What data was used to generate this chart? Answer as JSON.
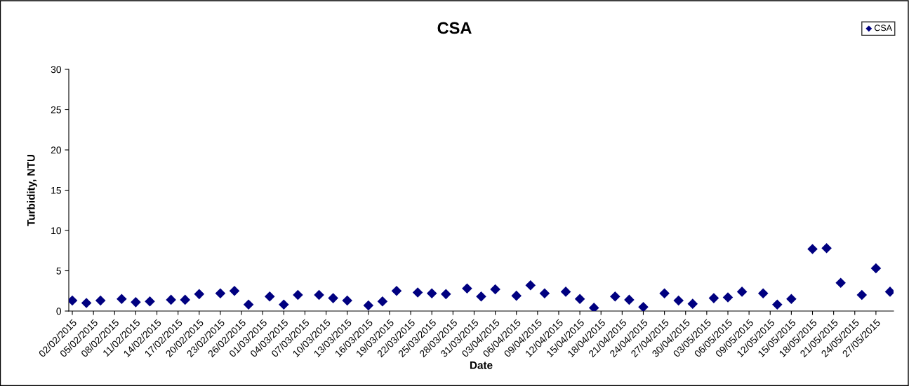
{
  "chart_data": {
    "type": "scatter",
    "title": "CSA",
    "xlabel": "Date",
    "ylabel": "Turbidity, NTU",
    "x": [
      "2015-02-02",
      "2015-02-04",
      "2015-02-06",
      "2015-02-09",
      "2015-02-11",
      "2015-02-13",
      "2015-02-16",
      "2015-02-18",
      "2015-02-20",
      "2015-02-23",
      "2015-02-25",
      "2015-02-27",
      "2015-03-02",
      "2015-03-04",
      "2015-03-06",
      "2015-03-09",
      "2015-03-11",
      "2015-03-13",
      "2015-03-16",
      "2015-03-18",
      "2015-03-20",
      "2015-03-23",
      "2015-03-25",
      "2015-03-27",
      "2015-03-30",
      "2015-04-01",
      "2015-04-03",
      "2015-04-06",
      "2015-04-08",
      "2015-04-10",
      "2015-04-13",
      "2015-04-15",
      "2015-04-17",
      "2015-04-20",
      "2015-04-22",
      "2015-04-24",
      "2015-04-27",
      "2015-04-29",
      "2015-05-01",
      "2015-05-04",
      "2015-05-06",
      "2015-05-08",
      "2015-05-11",
      "2015-05-13",
      "2015-05-15",
      "2015-05-18",
      "2015-05-20",
      "2015-05-22",
      "2015-05-25",
      "2015-05-27",
      "2015-05-29"
    ],
    "series": [
      {
        "name": "CSA",
        "color": "#000080",
        "values": [
          1.3,
          1.0,
          1.3,
          1.5,
          1.1,
          1.2,
          1.4,
          1.4,
          2.1,
          2.2,
          2.5,
          0.8,
          1.8,
          0.8,
          2.0,
          2.0,
          1.6,
          1.3,
          0.7,
          1.2,
          2.5,
          2.3,
          2.2,
          2.1,
          2.8,
          1.8,
          2.7,
          1.9,
          3.2,
          2.2,
          2.4,
          1.5,
          0.4,
          1.8,
          1.4,
          0.5,
          2.2,
          1.3,
          0.9,
          1.6,
          1.7,
          2.4,
          2.2,
          0.8,
          1.5,
          7.7,
          7.8,
          3.5,
          2.0,
          5.3,
          2.4
        ]
      }
    ],
    "marker": "diamond",
    "legend": "top right",
    "grid": false,
    "xlim": [
      "2015-02-01T12:00",
      "2015-05-29T12:00"
    ],
    "xticks": [
      {
        "value": "2015-02-02",
        "label": "02/02/2015"
      },
      {
        "value": "2015-02-05",
        "label": "05/02/2015"
      },
      {
        "value": "2015-02-08",
        "label": "08/02/2015"
      },
      {
        "value": "2015-02-11",
        "label": "11/02/2015"
      },
      {
        "value": "2015-02-14",
        "label": "14/02/2015"
      },
      {
        "value": "2015-02-17",
        "label": "17/02/2015"
      },
      {
        "value": "2015-02-20",
        "label": "20/02/2015"
      },
      {
        "value": "2015-02-23",
        "label": "23/02/2015"
      },
      {
        "value": "2015-02-26",
        "label": "26/02/2015"
      },
      {
        "value": "2015-03-01",
        "label": "01/03/2015"
      },
      {
        "value": "2015-03-04",
        "label": "04/03/2015"
      },
      {
        "value": "2015-03-07",
        "label": "07/03/2015"
      },
      {
        "value": "2015-03-10",
        "label": "10/03/2015"
      },
      {
        "value": "2015-03-13",
        "label": "13/03/2015"
      },
      {
        "value": "2015-03-16",
        "label": "16/03/2015"
      },
      {
        "value": "2015-03-19",
        "label": "19/03/2015"
      },
      {
        "value": "2015-03-22",
        "label": "22/03/2015"
      },
      {
        "value": "2015-03-25",
        "label": "25/03/2015"
      },
      {
        "value": "2015-03-28",
        "label": "28/03/2015"
      },
      {
        "value": "2015-03-31",
        "label": "31/03/2015"
      },
      {
        "value": "2015-04-03",
        "label": "03/04/2015"
      },
      {
        "value": "2015-04-06",
        "label": "06/04/2015"
      },
      {
        "value": "2015-04-09",
        "label": "09/04/2015"
      },
      {
        "value": "2015-04-12",
        "label": "12/04/2015"
      },
      {
        "value": "2015-04-15",
        "label": "15/04/2015"
      },
      {
        "value": "2015-04-18",
        "label": "18/04/2015"
      },
      {
        "value": "2015-04-21",
        "label": "21/04/2015"
      },
      {
        "value": "2015-04-24",
        "label": "24/04/2015"
      },
      {
        "value": "2015-04-27",
        "label": "27/04/2015"
      },
      {
        "value": "2015-04-30",
        "label": "30/04/2015"
      },
      {
        "value": "2015-05-03",
        "label": "03/05/2015"
      },
      {
        "value": "2015-05-06",
        "label": "06/05/2015"
      },
      {
        "value": "2015-05-09",
        "label": "09/05/2015"
      },
      {
        "value": "2015-05-12",
        "label": "12/05/2015"
      },
      {
        "value": "2015-05-15",
        "label": "15/05/2015"
      },
      {
        "value": "2015-05-18",
        "label": "18/05/2015"
      },
      {
        "value": "2015-05-21",
        "label": "21/05/2015"
      },
      {
        "value": "2015-05-24",
        "label": "24/05/2015"
      },
      {
        "value": "2015-05-27",
        "label": "27/05/2015"
      }
    ],
    "ylim": [
      0,
      30
    ],
    "yticks": [
      0,
      5,
      10,
      15,
      20,
      25,
      30
    ]
  }
}
